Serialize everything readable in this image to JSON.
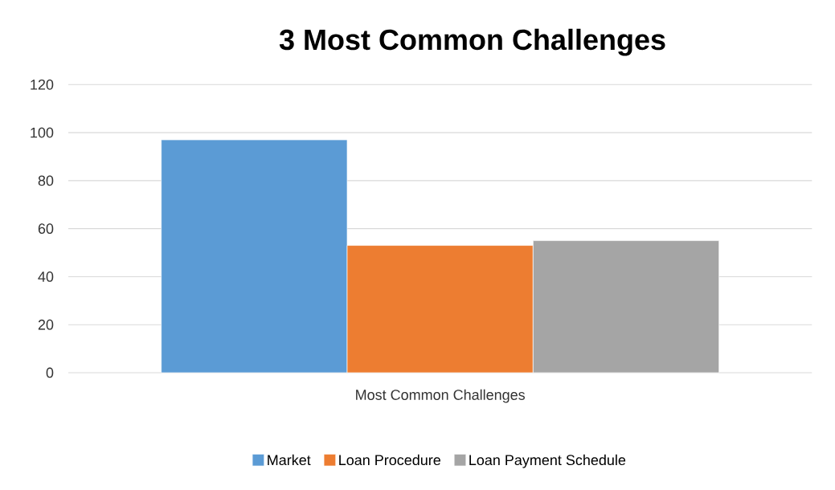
{
  "chart_data": {
    "type": "bar",
    "title": "3 Most Common Challenges",
    "categories": [
      "Most Common Challenges"
    ],
    "series": [
      {
        "name": "Market",
        "color": "#5b9bd5",
        "values": [
          97
        ]
      },
      {
        "name": "Loan Procedure",
        "color": "#ed7d31",
        "values": [
          53
        ]
      },
      {
        "name": "Loan Payment Schedule",
        "color": "#a5a5a5",
        "values": [
          55
        ]
      }
    ],
    "ylim": [
      0,
      120
    ],
    "yticks": [
      0,
      20,
      40,
      60,
      80,
      100,
      120
    ],
    "grid": "y",
    "legend": "bottom"
  }
}
